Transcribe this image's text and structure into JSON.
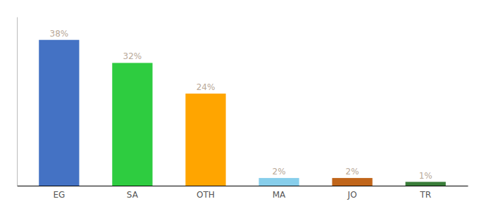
{
  "chart_data": {
    "type": "bar",
    "categories": [
      "EG",
      "SA",
      "OTH",
      "MA",
      "JO",
      "TR"
    ],
    "values": [
      38,
      32,
      24,
      2,
      2,
      1
    ],
    "value_labels": [
      "38%",
      "32%",
      "24%",
      "2%",
      "2%",
      "1%"
    ],
    "colors": [
      "#4472C4",
      "#2ECC40",
      "#FFA500",
      "#87CEEB",
      "#C0651A",
      "#3A7D3A"
    ],
    "ylim": [
      0,
      44
    ],
    "data_labels": true,
    "tick_labels": "x",
    "grid": false
  }
}
